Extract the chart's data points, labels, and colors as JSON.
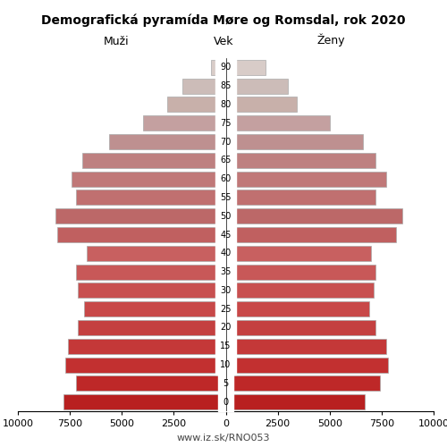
{
  "title": "Demografická pyramída Møre og Romsdal, rok 2020",
  "label_men": "Muži",
  "label_women": "Ženy",
  "label_age": "Vek",
  "footer": "www.iz.sk/RNO053",
  "age_groups": [
    0,
    5,
    10,
    15,
    20,
    25,
    30,
    35,
    40,
    45,
    50,
    55,
    60,
    65,
    70,
    75,
    80,
    85,
    90
  ],
  "men": [
    7800,
    7200,
    7700,
    7600,
    7100,
    6800,
    7100,
    7200,
    6700,
    8100,
    8200,
    7200,
    7400,
    6900,
    5600,
    4000,
    2800,
    2100,
    700
  ],
  "women": [
    6700,
    7400,
    7800,
    7700,
    7200,
    6900,
    7100,
    7200,
    7000,
    8200,
    8500,
    7200,
    7700,
    7200,
    6600,
    5000,
    3400,
    3000,
    1900
  ],
  "colors": [
    "#b82020",
    "#be2828",
    "#c23030",
    "#c43838",
    "#c44040",
    "#c84848",
    "#c85050",
    "#c85858",
    "#c86060",
    "#c06060",
    "#bc6868",
    "#c07070",
    "#c07878",
    "#be8080",
    "#be9090",
    "#c4a0a0",
    "#c8b0aa",
    "#ccbcb8",
    "#d8ccc8"
  ],
  "xlim": 10000,
  "xticks_left": [
    -10000,
    -7500,
    -5000,
    -2500,
    0
  ],
  "xtick_labels_left": [
    "10000",
    "7500",
    "5000",
    "2500",
    "0"
  ],
  "xticks_right": [
    0,
    2500,
    5000,
    7500,
    10000
  ],
  "xtick_labels_right": [
    "0",
    "2500",
    "5000",
    "7500",
    "10000"
  ],
  "background_color": "#ffffff",
  "bar_edge_color": "#aaaaaa",
  "bar_linewidth": 0.5,
  "title_fontsize": 10,
  "tick_fontsize": 8,
  "header_fontsize": 9,
  "footer_fontsize": 8
}
